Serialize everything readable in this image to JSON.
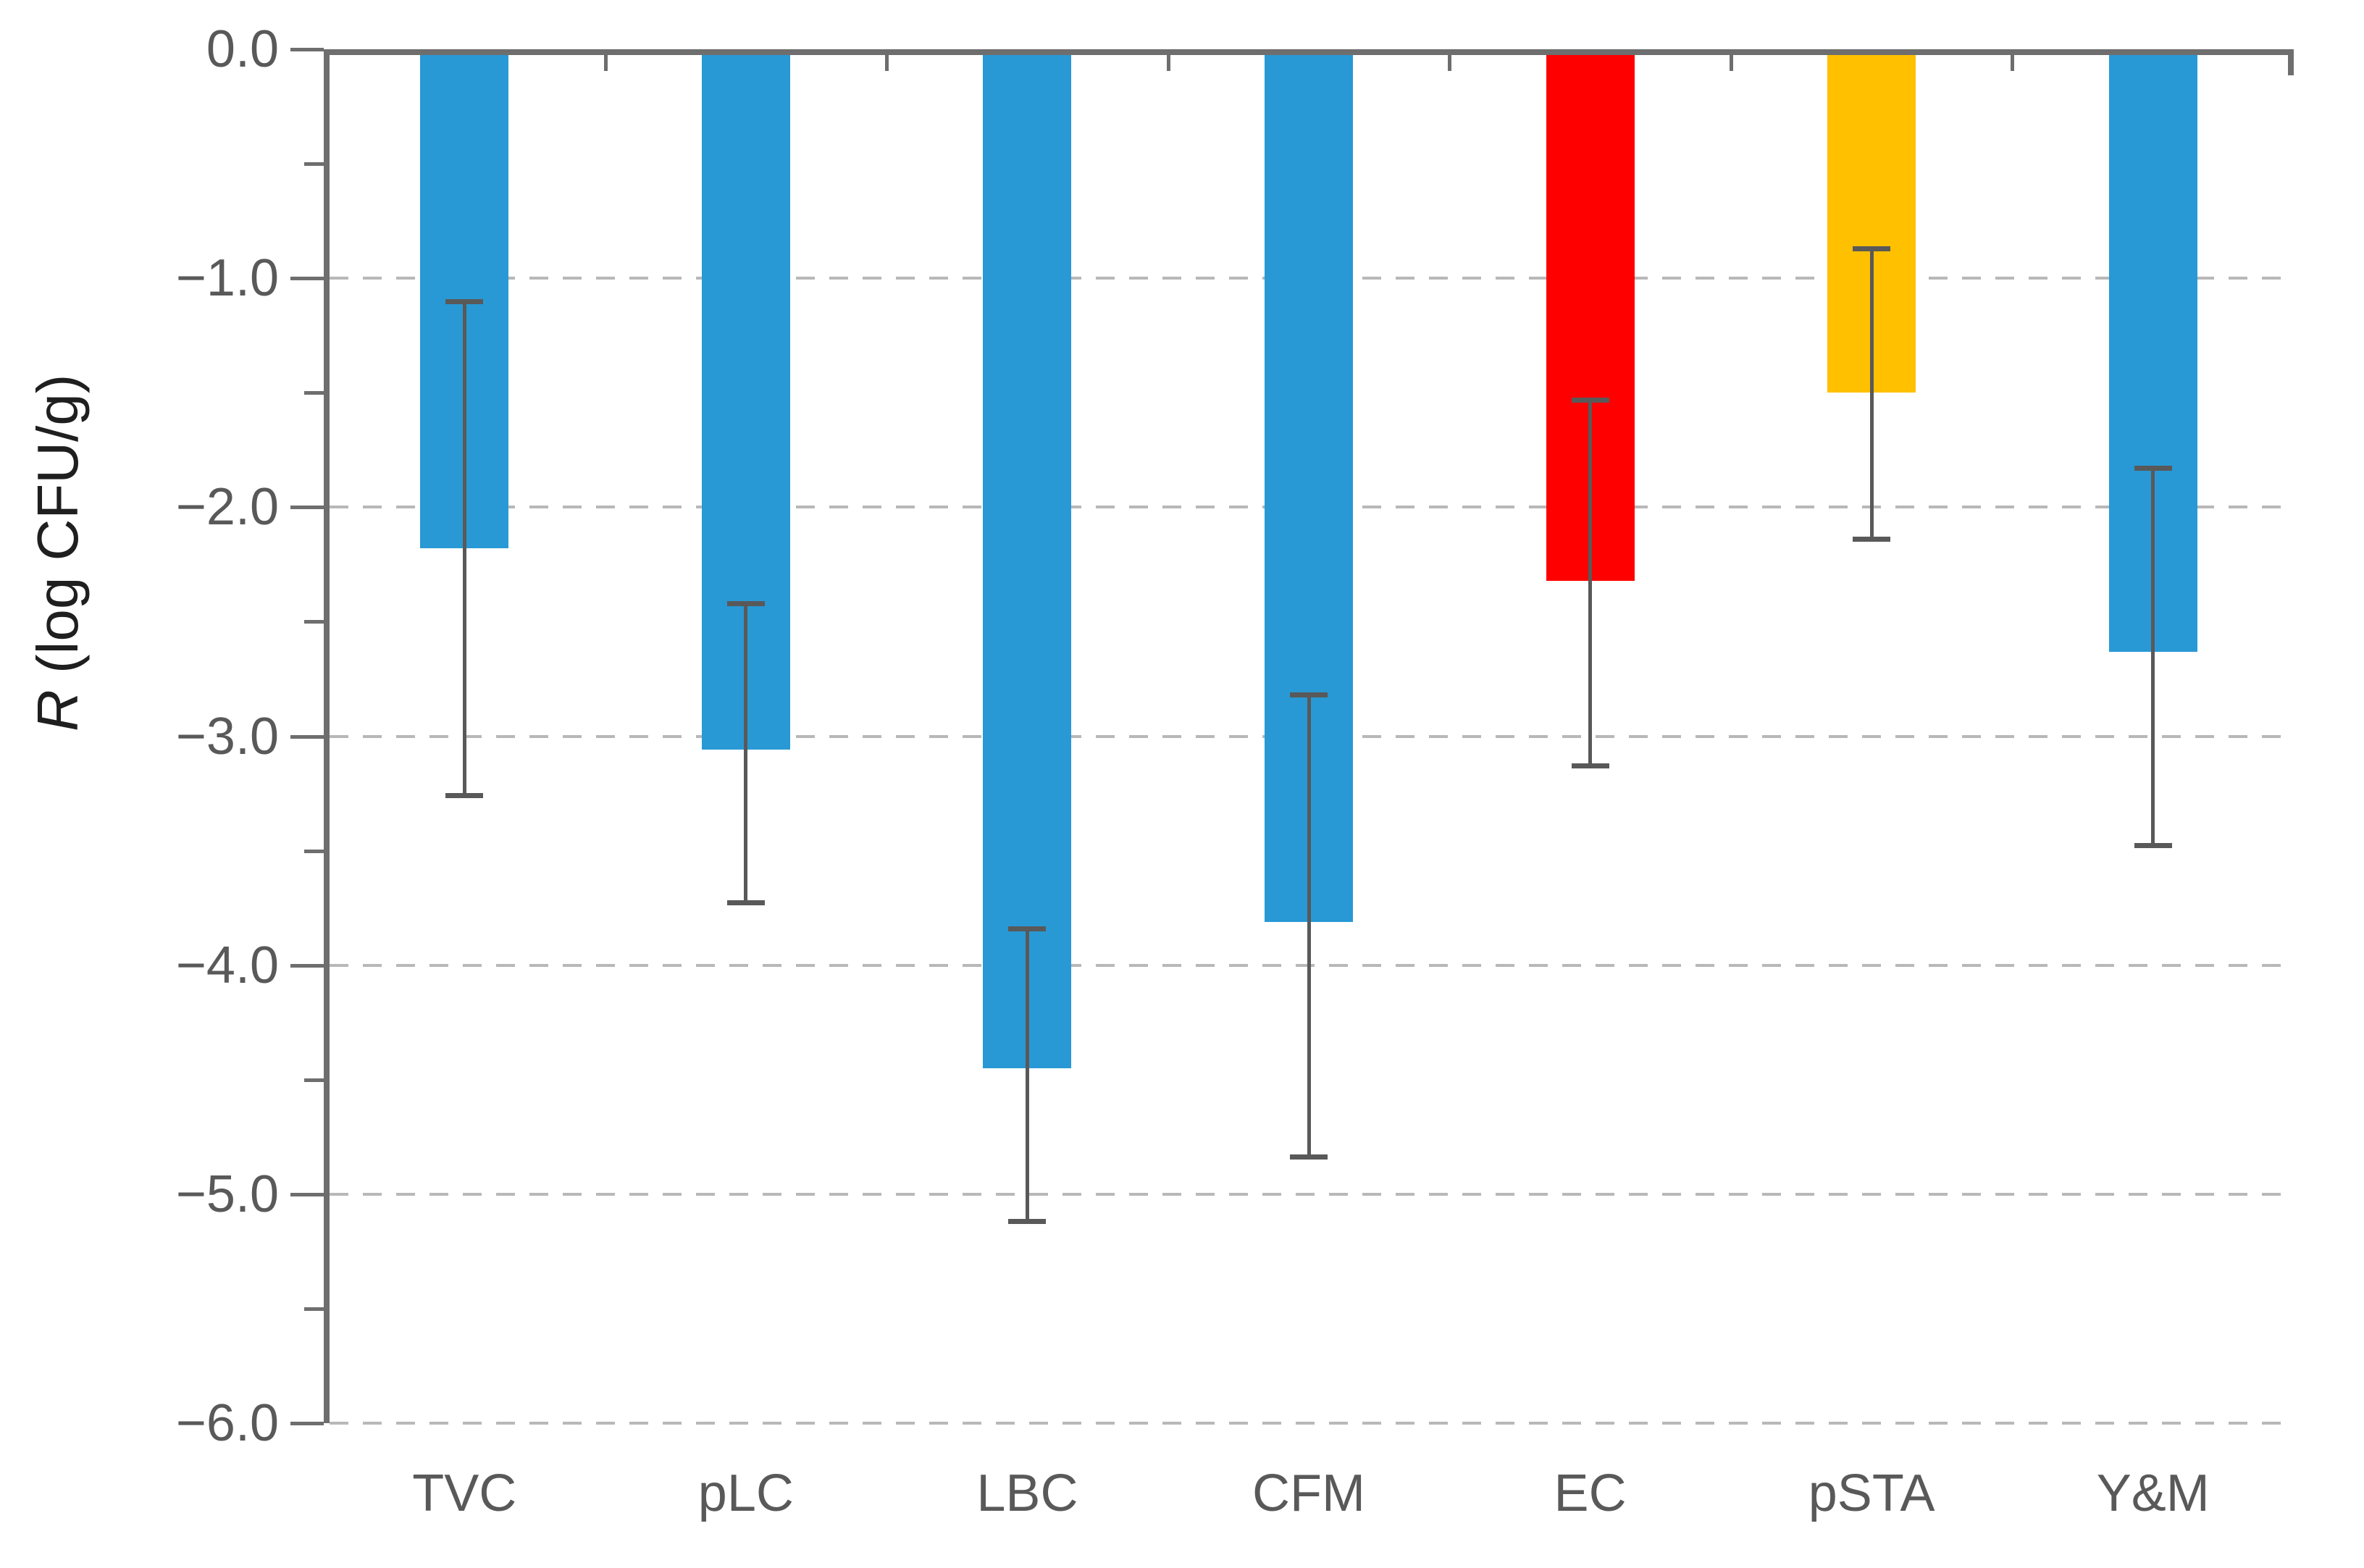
{
  "chart_data": {
    "type": "bar",
    "title": "",
    "categories": [
      "TVC",
      "pLC",
      "LBC",
      "CFM",
      "EC",
      "pSTA",
      "Y&M"
    ],
    "values": [
      -2.18,
      -3.06,
      -4.45,
      -3.81,
      -2.32,
      -1.5,
      -2.63
    ],
    "error_plus": [
      1.09,
      0.65,
      0.62,
      1.0,
      0.8,
      0.64,
      0.81
    ],
    "error_minus": [
      1.09,
      0.68,
      0.68,
      1.04,
      0.82,
      0.65,
      0.86
    ],
    "bar_colors": [
      "#2899D5",
      "#2899D5",
      "#2899D5",
      "#2899D5",
      "#FF0000",
      "#FFC000",
      "#2899D5"
    ],
    "series_name": "R",
    "xlabel": "",
    "ylabel_italic": "R",
    "ylabel_rest": " (log CFU/g)",
    "ylim": [
      -6.0,
      0.0
    ],
    "ytick_values": [
      0.0,
      -1.0,
      -2.0,
      -3.0,
      -4.0,
      -5.0,
      -6.0
    ],
    "ytick_labels": [
      "0.0",
      "−1.0",
      "−2.0",
      "−3.0",
      "−4.0",
      "−5.0",
      "−6.0"
    ],
    "minor_tick_step": 0.5,
    "grid": "horizontal dashed at every 1.0",
    "legend": "none",
    "colors": {
      "axis": "#6E6E6E",
      "gridline": "#B8B8B8",
      "error_bar": "#595959",
      "tick_label": "#595959",
      "axis_title": "#1F1F1F",
      "bar_blue": "#2899D5",
      "bar_red": "#FF0000",
      "bar_orange": "#FFC000"
    }
  }
}
